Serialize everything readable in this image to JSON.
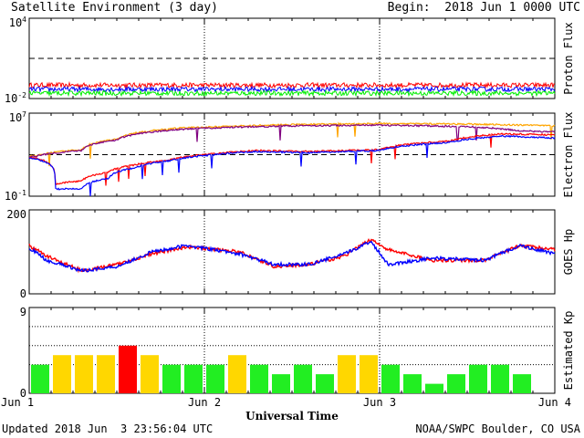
{
  "header": {
    "title": "Satellite Environment (3 day)",
    "begin": "Begin:  2018 Jun 1 0000 UTC"
  },
  "footer": {
    "updated": "Updated 2018 Jun  3 23:56:04 UTC",
    "source": "NOAA/SWPC Boulder, CO USA"
  },
  "x_axis": {
    "label": "Universal Time",
    "ticks": [
      "Jun 1",
      "Jun 2",
      "Jun 3",
      "Jun 4"
    ]
  },
  "colors": {
    "red": "#ff0000",
    "blue": "#0000ff",
    "green": "#00ee00",
    "orange": "#ffa500",
    "purple": "#800080",
    "kp_green": "#22ee22",
    "kp_yellow": "#ffd700",
    "kp_red": "#ff0000"
  },
  "chart_data": [
    {
      "type": "line",
      "ylabel": "Proton Flux",
      "yscale": "log",
      "ylim": [
        0.01,
        10000
      ],
      "ytick_labels": [
        "10^4",
        "10^-2"
      ],
      "threshold": 10,
      "x_range_days": [
        0,
        3
      ],
      "series": [
        {
          "color": "red",
          "base": 0.1,
          "pattern": "flat"
        },
        {
          "color": "blue",
          "base": 0.05,
          "pattern": "flat"
        },
        {
          "color": "green",
          "base": 0.025,
          "pattern": "flat"
        }
      ]
    },
    {
      "type": "line",
      "ylabel": "Electron Flux",
      "yscale": "log",
      "ylim": [
        0.1,
        10000000
      ],
      "ytick_labels": [
        "10^7",
        "10^-1"
      ],
      "threshold": 1000,
      "x_range_days": [
        0,
        3
      ],
      "series": [
        {
          "color": "orange",
          "x": [
            0,
            0.05,
            0.3,
            0.5,
            0.7,
            0.9,
            1.1,
            1.5,
            2.0,
            2.5,
            2.8,
            3.0
          ],
          "y": [
            700,
            900,
            3000,
            30000,
            200000,
            400000,
            500000,
            800000,
            1000000,
            900000,
            700000,
            600000
          ]
        },
        {
          "color": "purple",
          "x": [
            0,
            0.05,
            0.3,
            0.5,
            0.7,
            0.9,
            1.1,
            1.5,
            2.0,
            2.5,
            2.8,
            3.0
          ],
          "y": [
            600,
            800,
            2500,
            25000,
            150000,
            300000,
            400000,
            600000,
            700000,
            500000,
            200000,
            150000
          ]
        },
        {
          "color": "red",
          "x": [
            0,
            0.15,
            0.3,
            0.45,
            0.6,
            0.8,
            1.0,
            1.3,
            1.6,
            2.0,
            2.4,
            2.7,
            3.0
          ],
          "y": [
            600,
            1.5,
            3,
            20,
            100,
            300,
            1000,
            2500,
            2000,
            3000,
            20000,
            100000,
            80000
          ]
        },
        {
          "color": "blue",
          "x": [
            0,
            0.15,
            0.3,
            0.45,
            0.6,
            0.8,
            1.0,
            1.3,
            1.6,
            2.0,
            2.4,
            2.7,
            3.0
          ],
          "y": [
            500,
            0.5,
            0.5,
            5,
            50,
            250,
            800,
            2000,
            1500,
            2500,
            15000,
            60000,
            40000
          ]
        }
      ]
    },
    {
      "type": "line",
      "ylabel": "GOES Hp",
      "ylim": [
        0,
        200
      ],
      "ytick_labels": [
        "200",
        "0"
      ],
      "x_range_days": [
        0,
        3
      ],
      "series": [
        {
          "color": "red",
          "x": [
            0,
            0.1,
            0.3,
            0.5,
            0.7,
            0.9,
            1.2,
            1.4,
            1.6,
            1.8,
            1.95,
            2.05,
            2.3,
            2.6,
            2.8,
            3.0
          ],
          "y": [
            115,
            90,
            55,
            70,
            95,
            112,
            100,
            65,
            70,
            90,
            130,
            105,
            80,
            80,
            115,
            105
          ]
        },
        {
          "color": "blue",
          "x": [
            0,
            0.1,
            0.3,
            0.5,
            0.7,
            0.9,
            1.2,
            1.4,
            1.6,
            1.8,
            1.95,
            2.05,
            2.3,
            2.6,
            2.8,
            3.0
          ],
          "y": [
            110,
            80,
            55,
            65,
            100,
            115,
            95,
            70,
            70,
            95,
            125,
            70,
            85,
            80,
            115,
            95
          ]
        }
      ]
    },
    {
      "type": "bar",
      "ylabel": "Estimated Kp",
      "ylim": [
        0,
        9
      ],
      "ytick_labels": [
        "9",
        "0"
      ],
      "values": [
        3,
        4,
        4,
        4,
        5,
        4,
        3,
        3,
        3,
        4,
        3,
        2,
        3,
        2,
        4,
        4,
        3,
        2,
        1,
        2,
        3,
        3,
        2
      ]
    }
  ]
}
